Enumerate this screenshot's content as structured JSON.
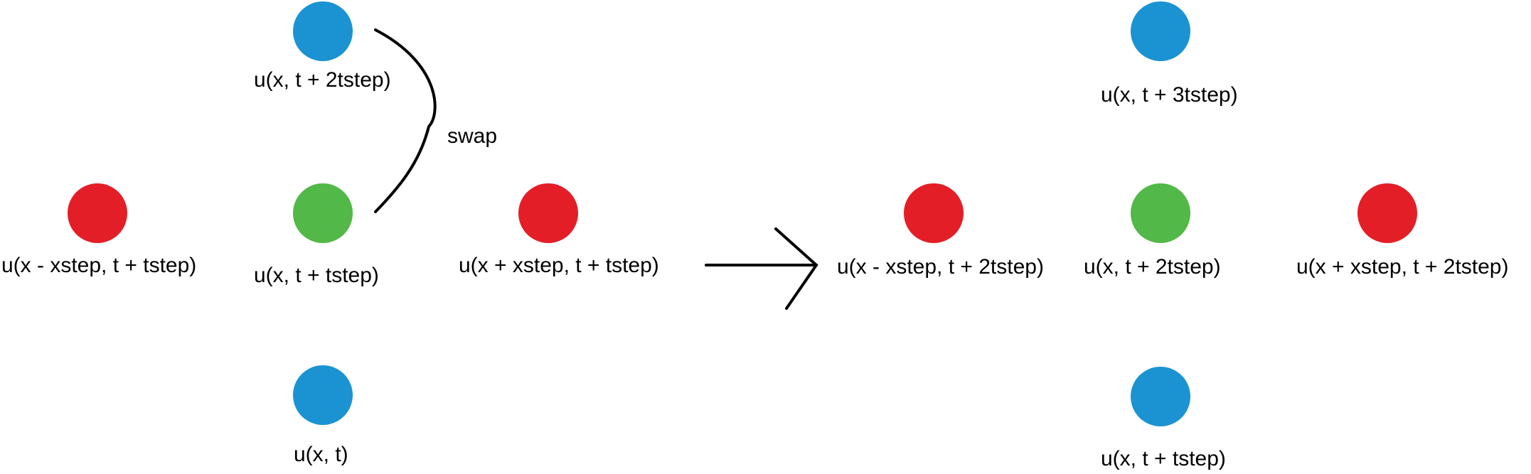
{
  "colors": {
    "neighbor": "#e31e27",
    "center": "#52b847",
    "vertical": "#1b93d2",
    "stroke": "#000000"
  },
  "left_stencil": {
    "top_label": "u(x, t + 2tstep)",
    "center_label": "u(x, t + tstep)",
    "left_label": "u(x - xstep, t + tstep)",
    "right_label": "u(x + xstep, t + tstep)",
    "bottom_label": "u(x, t)",
    "swap_label": "swap"
  },
  "right_stencil": {
    "top_label": "u(x, t + 3tstep)",
    "center_label": "u(x, t + 2tstep)",
    "left_label": "u(x - xstep, t + 2tstep)",
    "right_label": "u(x + xstep, t + 2tstep)",
    "bottom_label": "u(x, t + tstep)"
  }
}
